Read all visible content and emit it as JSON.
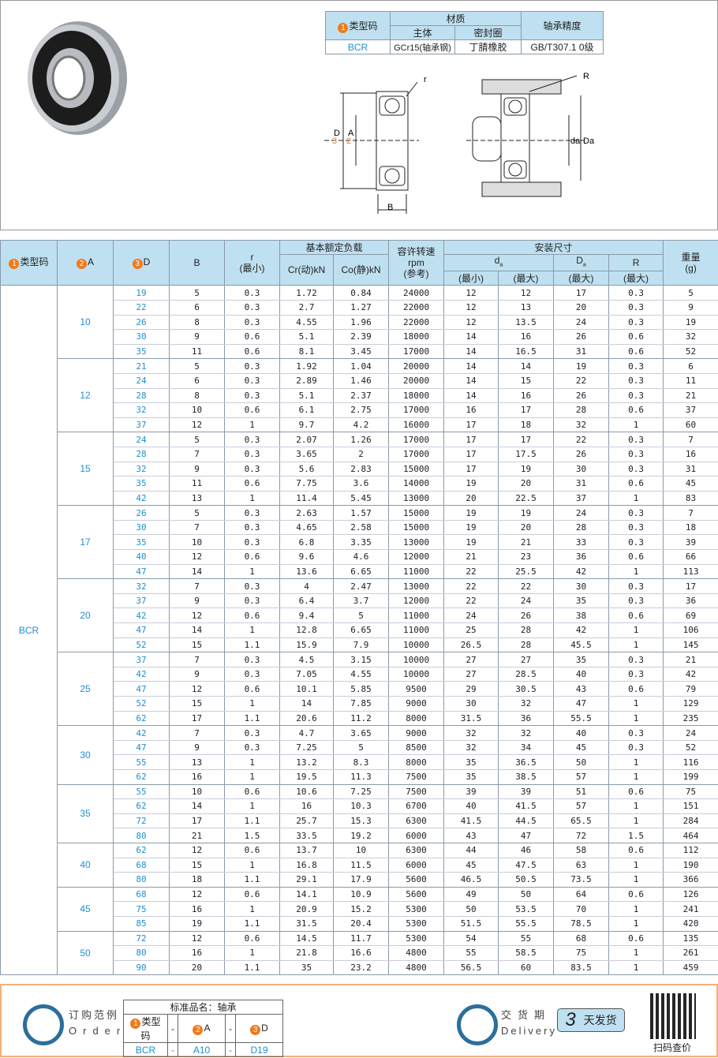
{
  "materials": {
    "h_type": "类型码",
    "h_material": "材质",
    "h_body": "主体",
    "h_seal": "密封圈",
    "h_precision": "轴承精度",
    "type": "BCR",
    "body": "GCr15(轴承钢)",
    "seal": "丁腈橡胶",
    "precision": "GB/T307.1 0级"
  },
  "diagram": {
    "r": "r",
    "R": "R",
    "D": "D",
    "A": "A",
    "B": "B",
    "da": "da",
    "Da": "Da",
    "n1": "1",
    "n2": "2",
    "n3": "3"
  },
  "header": {
    "type": "类型码",
    "A": "A",
    "D": "D",
    "B": "B",
    "r": "r",
    "r_sub": "(最小)",
    "load": "基本额定负载",
    "cr": "Cr(动)kN",
    "co": "Co(静)kN",
    "speed": "容许转速",
    "rpm": "rpm",
    "ref": "(参考)",
    "install": "安装尺寸",
    "da": "d",
    "da_sub": "a",
    "Da": "D",
    "Da_sub": "a",
    "R": "R",
    "min": "(最小)",
    "max": "(最大)",
    "weight": "重量",
    "g": "(g)"
  },
  "type_code": "BCR",
  "groups": [
    {
      "A": "10",
      "rows": [
        [
          "19",
          "5",
          "0.3",
          "1.72",
          "0.84",
          "24000",
          "12",
          "12",
          "17",
          "0.3",
          "5"
        ],
        [
          "22",
          "6",
          "0.3",
          "2.7",
          "1.27",
          "22000",
          "12",
          "13",
          "20",
          "0.3",
          "9"
        ],
        [
          "26",
          "8",
          "0.3",
          "4.55",
          "1.96",
          "22000",
          "12",
          "13.5",
          "24",
          "0.3",
          "19"
        ],
        [
          "30",
          "9",
          "0.6",
          "5.1",
          "2.39",
          "18000",
          "14",
          "16",
          "26",
          "0.6",
          "32"
        ],
        [
          "35",
          "11",
          "0.6",
          "8.1",
          "3.45",
          "17000",
          "14",
          "16.5",
          "31",
          "0.6",
          "52"
        ]
      ]
    },
    {
      "A": "12",
      "rows": [
        [
          "21",
          "5",
          "0.3",
          "1.92",
          "1.04",
          "20000",
          "14",
          "14",
          "19",
          "0.3",
          "6"
        ],
        [
          "24",
          "6",
          "0.3",
          "2.89",
          "1.46",
          "20000",
          "14",
          "15",
          "22",
          "0.3",
          "11"
        ],
        [
          "28",
          "8",
          "0.3",
          "5.1",
          "2.37",
          "18000",
          "14",
          "16",
          "26",
          "0.3",
          "21"
        ],
        [
          "32",
          "10",
          "0.6",
          "6.1",
          "2.75",
          "17000",
          "16",
          "17",
          "28",
          "0.6",
          "37"
        ],
        [
          "37",
          "12",
          "1",
          "9.7",
          "4.2",
          "16000",
          "17",
          "18",
          "32",
          "1",
          "60"
        ]
      ]
    },
    {
      "A": "15",
      "rows": [
        [
          "24",
          "5",
          "0.3",
          "2.07",
          "1.26",
          "17000",
          "17",
          "17",
          "22",
          "0.3",
          "7"
        ],
        [
          "28",
          "7",
          "0.3",
          "3.65",
          "2",
          "17000",
          "17",
          "17.5",
          "26",
          "0.3",
          "16"
        ],
        [
          "32",
          "9",
          "0.3",
          "5.6",
          "2.83",
          "15000",
          "17",
          "19",
          "30",
          "0.3",
          "31"
        ],
        [
          "35",
          "11",
          "0.6",
          "7.75",
          "3.6",
          "14000",
          "19",
          "20",
          "31",
          "0.6",
          "45"
        ],
        [
          "42",
          "13",
          "1",
          "11.4",
          "5.45",
          "13000",
          "20",
          "22.5",
          "37",
          "1",
          "83"
        ]
      ]
    },
    {
      "A": "17",
      "rows": [
        [
          "26",
          "5",
          "0.3",
          "2.63",
          "1.57",
          "15000",
          "19",
          "19",
          "24",
          "0.3",
          "7"
        ],
        [
          "30",
          "7",
          "0.3",
          "4.65",
          "2.58",
          "15000",
          "19",
          "20",
          "28",
          "0.3",
          "18"
        ],
        [
          "35",
          "10",
          "0.3",
          "6.8",
          "3.35",
          "13000",
          "19",
          "21",
          "33",
          "0.3",
          "39"
        ],
        [
          "40",
          "12",
          "0.6",
          "9.6",
          "4.6",
          "12000",
          "21",
          "23",
          "36",
          "0.6",
          "66"
        ],
        [
          "47",
          "14",
          "1",
          "13.6",
          "6.65",
          "11000",
          "22",
          "25.5",
          "42",
          "1",
          "113"
        ]
      ]
    },
    {
      "A": "20",
      "rows": [
        [
          "32",
          "7",
          "0.3",
          "4",
          "2.47",
          "13000",
          "22",
          "22",
          "30",
          "0.3",
          "17"
        ],
        [
          "37",
          "9",
          "0.3",
          "6.4",
          "3.7",
          "12000",
          "22",
          "24",
          "35",
          "0.3",
          "36"
        ],
        [
          "42",
          "12",
          "0.6",
          "9.4",
          "5",
          "11000",
          "24",
          "26",
          "38",
          "0.6",
          "69"
        ],
        [
          "47",
          "14",
          "1",
          "12.8",
          "6.65",
          "11000",
          "25",
          "28",
          "42",
          "1",
          "106"
        ],
        [
          "52",
          "15",
          "1.1",
          "15.9",
          "7.9",
          "10000",
          "26.5",
          "28",
          "45.5",
          "1",
          "145"
        ]
      ]
    },
    {
      "A": "25",
      "rows": [
        [
          "37",
          "7",
          "0.3",
          "4.5",
          "3.15",
          "10000",
          "27",
          "27",
          "35",
          "0.3",
          "21"
        ],
        [
          "42",
          "9",
          "0.3",
          "7.05",
          "4.55",
          "10000",
          "27",
          "28.5",
          "40",
          "0.3",
          "42"
        ],
        [
          "47",
          "12",
          "0.6",
          "10.1",
          "5.85",
          "9500",
          "29",
          "30.5",
          "43",
          "0.6",
          "79"
        ],
        [
          "52",
          "15",
          "1",
          "14",
          "7.85",
          "9000",
          "30",
          "32",
          "47",
          "1",
          "129"
        ],
        [
          "62",
          "17",
          "1.1",
          "20.6",
          "11.2",
          "8000",
          "31.5",
          "36",
          "55.5",
          "1",
          "235"
        ]
      ]
    },
    {
      "A": "30",
      "rows": [
        [
          "42",
          "7",
          "0.3",
          "4.7",
          "3.65",
          "9000",
          "32",
          "32",
          "40",
          "0.3",
          "24"
        ],
        [
          "47",
          "9",
          "0.3",
          "7.25",
          "5",
          "8500",
          "32",
          "34",
          "45",
          "0.3",
          "52"
        ],
        [
          "55",
          "13",
          "1",
          "13.2",
          "8.3",
          "8000",
          "35",
          "36.5",
          "50",
          "1",
          "116"
        ],
        [
          "62",
          "16",
          "1",
          "19.5",
          "11.3",
          "7500",
          "35",
          "38.5",
          "57",
          "1",
          "199"
        ]
      ]
    },
    {
      "A": "35",
      "rows": [
        [
          "55",
          "10",
          "0.6",
          "10.6",
          "7.25",
          "7500",
          "39",
          "39",
          "51",
          "0.6",
          "75"
        ],
        [
          "62",
          "14",
          "1",
          "16",
          "10.3",
          "6700",
          "40",
          "41.5",
          "57",
          "1",
          "151"
        ],
        [
          "72",
          "17",
          "1.1",
          "25.7",
          "15.3",
          "6300",
          "41.5",
          "44.5",
          "65.5",
          "1",
          "284"
        ],
        [
          "80",
          "21",
          "1.5",
          "33.5",
          "19.2",
          "6000",
          "43",
          "47",
          "72",
          "1.5",
          "464"
        ]
      ]
    },
    {
      "A": "40",
      "rows": [
        [
          "62",
          "12",
          "0.6",
          "13.7",
          "10",
          "6300",
          "44",
          "46",
          "58",
          "0.6",
          "112"
        ],
        [
          "68",
          "15",
          "1",
          "16.8",
          "11.5",
          "6000",
          "45",
          "47.5",
          "63",
          "1",
          "190"
        ],
        [
          "80",
          "18",
          "1.1",
          "29.1",
          "17.9",
          "5600",
          "46.5",
          "50.5",
          "73.5",
          "1",
          "366"
        ]
      ]
    },
    {
      "A": "45",
      "rows": [
        [
          "68",
          "12",
          "0.6",
          "14.1",
          "10.9",
          "5600",
          "49",
          "50",
          "64",
          "0.6",
          "126"
        ],
        [
          "75",
          "16",
          "1",
          "20.9",
          "15.2",
          "5300",
          "50",
          "53.5",
          "70",
          "1",
          "241"
        ],
        [
          "85",
          "19",
          "1.1",
          "31.5",
          "20.4",
          "5300",
          "51.5",
          "55.5",
          "78.5",
          "1",
          "420"
        ]
      ]
    },
    {
      "A": "50",
      "rows": [
        [
          "72",
          "12",
          "0.6",
          "14.5",
          "11.7",
          "5300",
          "54",
          "55",
          "68",
          "0.6",
          "135"
        ],
        [
          "80",
          "16",
          "1",
          "21.8",
          "16.6",
          "4800",
          "55",
          "58.5",
          "75",
          "1",
          "261"
        ],
        [
          "90",
          "20",
          "1.1",
          "35",
          "23.2",
          "4800",
          "56.5",
          "60",
          "83.5",
          "1",
          "459"
        ]
      ]
    }
  ],
  "footer": {
    "order_cn": "订购范例",
    "order_en": "Order",
    "std_name": "标准品名：轴承",
    "col_type": "类型码",
    "col_A": "A",
    "col_D": "D",
    "dash": "-",
    "ex_type": "BCR",
    "ex_A": "A10",
    "ex_D": "D19",
    "delivery_cn": "交货期",
    "delivery_en": "Delivery",
    "days": "3",
    "days_label": "天发货",
    "qr_label": "扫码查价"
  },
  "colors": {
    "header_bg": "#bfe0f0",
    "accent_blue": "#1e8fd0",
    "badge_orange": "#f07a1a",
    "footer_border": "#f3b07a",
    "icon_blue": "#2c6e9c"
  }
}
